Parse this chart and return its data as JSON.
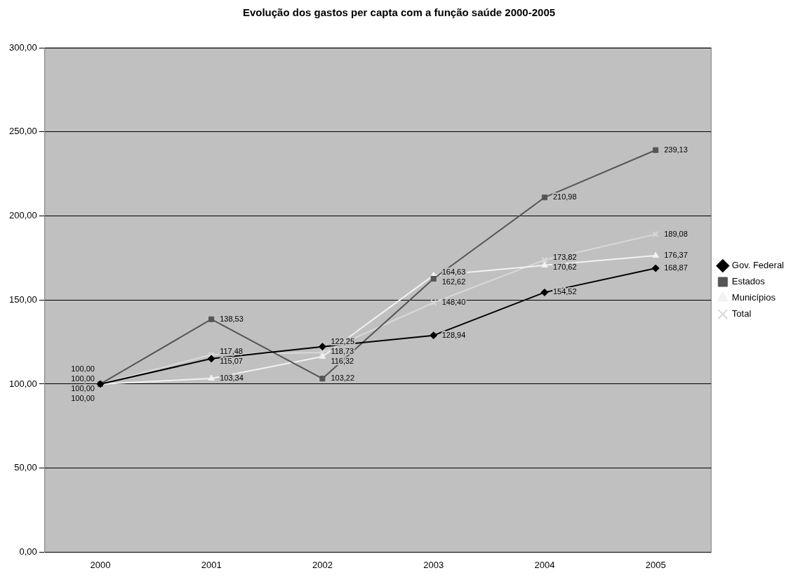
{
  "chart_data": {
    "type": "line",
    "title": "Evolução dos gastos per capta com a função saúde 2000-2005",
    "categories": [
      "2000",
      "2001",
      "2002",
      "2003",
      "2004",
      "2005"
    ],
    "series": [
      {
        "name": "Gov. Federal",
        "color": "#000000",
        "marker": "diamond",
        "values": [
          100,
          115.07,
          122.25,
          128.94,
          154.52,
          168.87
        ],
        "value_labels": [
          "100,00",
          "115,07",
          "122,25",
          "128,94",
          "154,52",
          "168,87"
        ]
      },
      {
        "name": "Estados",
        "color": "#555555",
        "marker": "square",
        "values": [
          100,
          138.53,
          103.22,
          162.62,
          210.98,
          239.13
        ],
        "value_labels": [
          "100,00",
          "138,53",
          "103,22",
          "162,62",
          "210,98",
          "239,13"
        ]
      },
      {
        "name": "Municípios",
        "color": "#f2f2f2",
        "marker": "triangle",
        "values": [
          100,
          103.34,
          116.32,
          164.63,
          170.62,
          176.37
        ],
        "value_labels": [
          "100,00",
          "103,34",
          "116,32",
          "164,63",
          "170,62",
          "176,37"
        ]
      },
      {
        "name": "Total",
        "color": "#d9d9d9",
        "marker": "cross",
        "values": [
          100,
          117.48,
          118.73,
          148.4,
          173.82,
          189.08
        ],
        "value_labels": [
          "100,00",
          "117,48",
          "118,73",
          "148,40",
          "173,82",
          "189,08"
        ]
      }
    ],
    "ylim": [
      0,
      300
    ],
    "yticks": [
      {
        "value": 0,
        "label": "0,00"
      },
      {
        "value": 50,
        "label": "50,00"
      },
      {
        "value": 100,
        "label": "100,00"
      },
      {
        "value": 150,
        "label": "150,00"
      },
      {
        "value": 200,
        "label": "200,00"
      },
      {
        "value": 250,
        "label": "250,00"
      },
      {
        "value": 300,
        "label": "300,00"
      }
    ],
    "grid": "y",
    "legend": "right",
    "line_style": "solid"
  }
}
